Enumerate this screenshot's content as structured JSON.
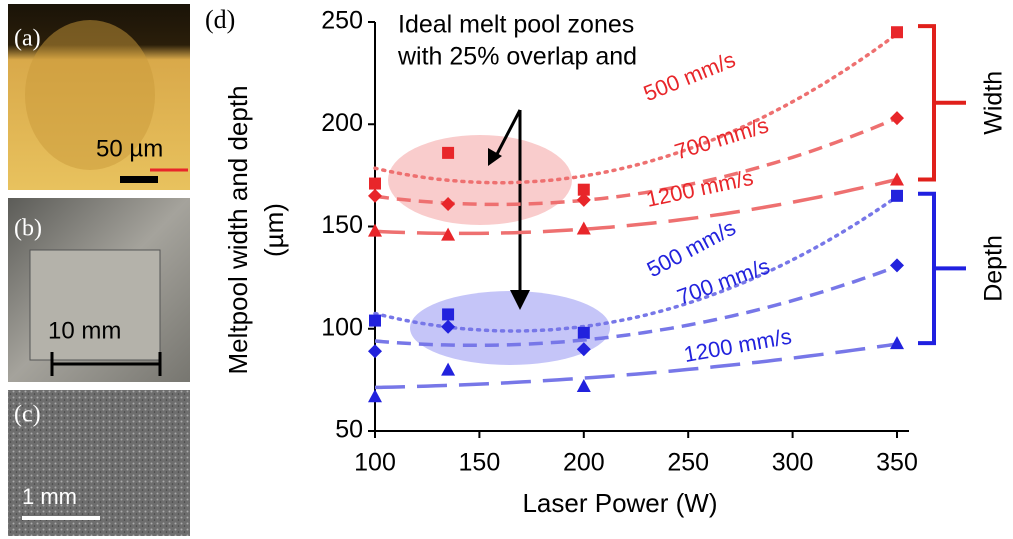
{
  "panels": {
    "a": {
      "label": "(a)",
      "scale": "50 µm"
    },
    "b": {
      "label": "(b)",
      "scale": "10 mm"
    },
    "c": {
      "label": "(c)",
      "scale": "1 mm"
    }
  },
  "chart_data": {
    "type": "scatter",
    "panel_label": "(d)",
    "annotation": [
      "Ideal melt pool zones",
      "with 25% overlap and"
    ],
    "xlabel": "Laser Power (W)",
    "ylabel": [
      "Meltpool width and depth",
      "(µm)"
    ],
    "x": [
      100,
      135,
      200,
      350
    ],
    "xlim": [
      100,
      350
    ],
    "xticks": [
      100,
      150,
      200,
      250,
      300,
      350
    ],
    "ylim": [
      50,
      250
    ],
    "yticks": [
      50,
      100,
      150,
      200,
      250
    ],
    "trendline": "quadratic",
    "brackets": [
      {
        "label": "Width",
        "color": "#e0201b",
        "range": [
          173,
          248
        ]
      },
      {
        "label": "Depth",
        "color": "#2020e0",
        "range": [
          93,
          166
        ]
      }
    ],
    "series": [
      {
        "name": "500 mm/s",
        "color": "#e8262a",
        "line_color": "#ee7070",
        "marker": "square",
        "dash": "dotted",
        "values": [
          171,
          186,
          168,
          245
        ]
      },
      {
        "name": "700 mm/s",
        "color": "#e8262a",
        "line_color": "#ee7070",
        "marker": "diamond",
        "dash": "dashed",
        "values": [
          165,
          161,
          163,
          203
        ]
      },
      {
        "name": "1200 mm/s",
        "color": "#e8262a",
        "line_color": "#ee7070",
        "marker": "triangle",
        "dash": "longdash",
        "values": [
          148,
          146,
          149,
          173
        ]
      },
      {
        "name": "500 mm/s",
        "color": "#2222dd",
        "line_color": "#7777e8",
        "marker": "square",
        "dash": "dotted",
        "values": [
          104,
          107,
          98,
          165
        ]
      },
      {
        "name": "700 mm/s",
        "color": "#2222dd",
        "line_color": "#7777e8",
        "marker": "diamond",
        "dash": "dashed",
        "values": [
          89,
          101,
          90,
          131
        ]
      },
      {
        "name": "1200 mm/s",
        "color": "#2222dd",
        "line_color": "#7777e8",
        "marker": "triangle",
        "dash": "longdash",
        "values": [
          67,
          80,
          72,
          93
        ]
      }
    ]
  }
}
